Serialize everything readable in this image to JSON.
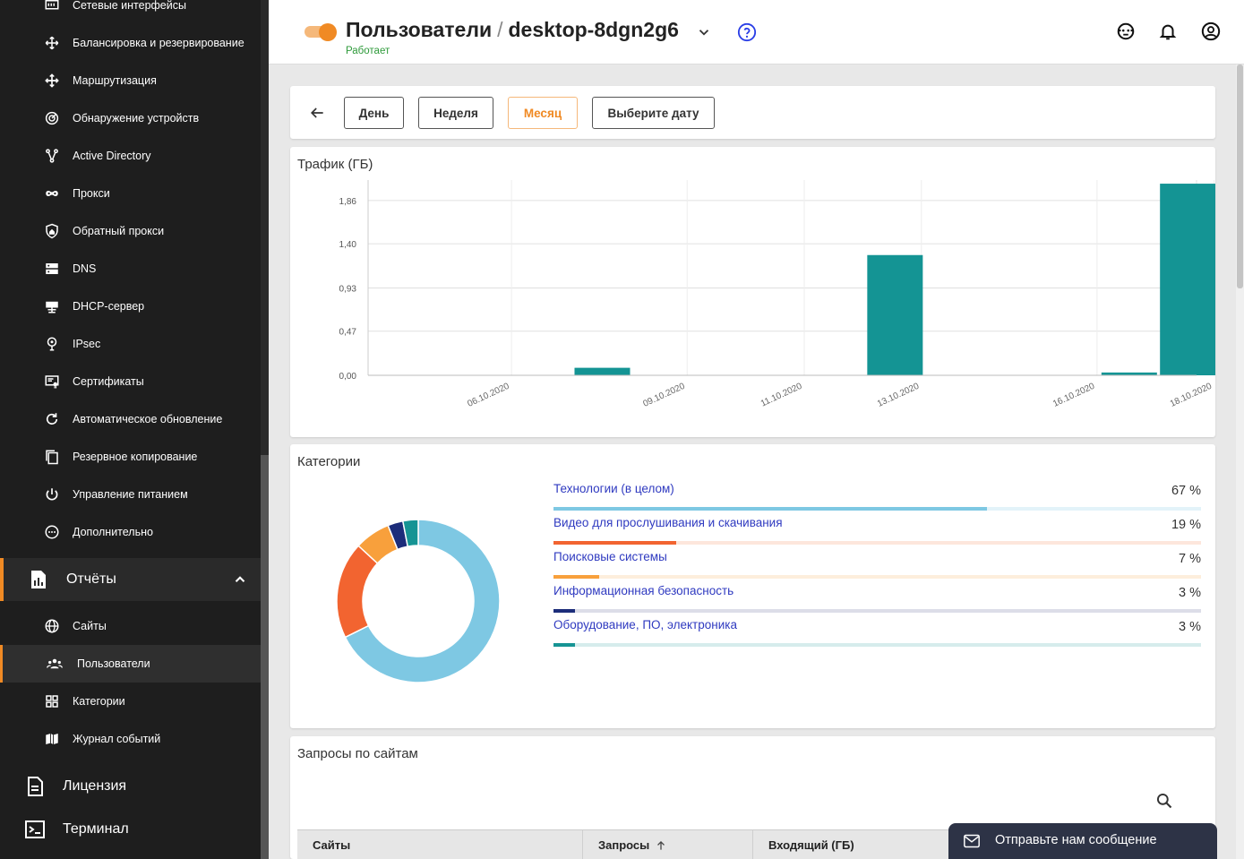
{
  "sidebar": {
    "items": [
      {
        "label": "Сетевые интерфейсы",
        "icon": "network-interfaces-icon"
      },
      {
        "label": "Балансировка и резервирование",
        "icon": "balancing-icon"
      },
      {
        "label": "Маршрутизация",
        "icon": "routing-icon"
      },
      {
        "label": "Обнаружение устройств",
        "icon": "device-discovery-icon"
      },
      {
        "label": "Active Directory",
        "icon": "active-directory-icon"
      },
      {
        "label": "Прокси",
        "icon": "proxy-icon"
      },
      {
        "label": "Обратный прокси",
        "icon": "reverse-proxy-icon"
      },
      {
        "label": "DNS",
        "icon": "dns-icon"
      },
      {
        "label": "DHCP-сервер",
        "icon": "dhcp-icon"
      },
      {
        "label": "IPsec",
        "icon": "ipsec-icon"
      },
      {
        "label": "Сертификаты",
        "icon": "certificates-icon"
      },
      {
        "label": "Автоматическое обновление",
        "icon": "auto-update-icon"
      },
      {
        "label": "Резервное копирование",
        "icon": "backup-icon"
      },
      {
        "label": "Управление питанием",
        "icon": "power-icon"
      },
      {
        "label": "Дополнительно",
        "icon": "more-icon"
      }
    ],
    "reports": {
      "label": "Отчёты",
      "icon": "reports-icon"
    },
    "report_items": [
      {
        "label": "Сайты",
        "icon": "globe-icon"
      },
      {
        "label": "Пользователи",
        "icon": "users-icon"
      },
      {
        "label": "Категории",
        "icon": "categories-icon"
      },
      {
        "label": "Журнал событий",
        "icon": "event-log-icon"
      }
    ],
    "license": {
      "label": "Лицензия",
      "icon": "license-icon"
    },
    "terminal": {
      "label": "Терминал",
      "icon": "terminal-icon"
    }
  },
  "header": {
    "section": "Пользователи",
    "separator": "/",
    "device": "desktop-8dgn2g6",
    "status": "Работает"
  },
  "period": {
    "day": "День",
    "week": "Неделя",
    "month": "Месяц",
    "pick": "Выберите дату",
    "selected": "Месяц"
  },
  "traffic": {
    "title": "Трафик (ГБ)"
  },
  "chart_data": {
    "type": "bar",
    "title": "Трафик (ГБ)",
    "y_ticks": [
      "0,00",
      "0,47",
      "0,93",
      "1,40",
      "1,86"
    ],
    "x_ticks": [
      "06.10.2020",
      "09.10.2020",
      "11.10.2020",
      "13.10.2020",
      "16.10.2020",
      "18.10.2020"
    ],
    "ylim": [
      0,
      2.05
    ],
    "bars": [
      {
        "date": "08.10.2020",
        "value": 0.08
      },
      {
        "date": "13.10.2020",
        "value": 1.28
      },
      {
        "date": "17.10.2020",
        "value": 0.03
      },
      {
        "date": "18.10.2020",
        "value": 2.04
      }
    ],
    "color": "#149494",
    "grid": true
  },
  "categories": {
    "title": "Категории",
    "items": [
      {
        "name": "Технологии (в целом)",
        "pct_label": "67 %",
        "value": 67,
        "color": "#7ec8e3",
        "bg": "#e3f3f9"
      },
      {
        "name": "Видео для прослушивания и скачивания",
        "pct_label": "19 %",
        "value": 19,
        "color": "#f26430",
        "bg": "#fde6dc"
      },
      {
        "name": "Поисковые системы",
        "pct_label": "7 %",
        "value": 7,
        "color": "#f8a03c",
        "bg": "#fdeedc"
      },
      {
        "name": "Информационная безопасность",
        "pct_label": "3 %",
        "value": 3,
        "color": "#1c2d7a",
        "bg": "#dcdde8"
      },
      {
        "name": "Оборудование, ПО, электроника",
        "pct_label": "3 %",
        "value": 3,
        "color": "#169494",
        "bg": "#d6ecec"
      }
    ]
  },
  "requests": {
    "title": "Запросы по сайтам",
    "columns": [
      "Сайты",
      "Запросы",
      "Входящий (ГБ)"
    ]
  },
  "chat": {
    "label": "Отправьте нам сообщение"
  }
}
